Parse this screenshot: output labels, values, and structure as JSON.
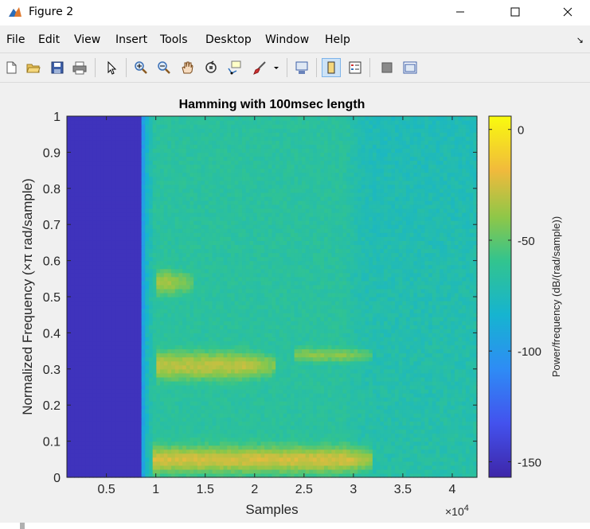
{
  "window": {
    "title": "Figure 2"
  },
  "menu": [
    "File",
    "Edit",
    "View",
    "Insert",
    "Tools",
    "Desktop",
    "Window",
    "Help"
  ],
  "toolbar": {
    "icons": [
      "new-figure-icon",
      "open-file-icon",
      "save-icon",
      "print-icon",
      "pointer-icon",
      "zoom-in-icon",
      "zoom-out-icon",
      "pan-icon",
      "rotate-3d-icon",
      "data-cursor-icon",
      "brush-icon",
      "link-plot-icon",
      "colorbar-icon",
      "legend-icon",
      "hide-plot-tools-icon",
      "show-plot-tools-icon"
    ]
  },
  "chart_data": {
    "type": "heatmap",
    "title": "Hamming with 100msec length",
    "xlabel": "Samples",
    "ylabel": "Normalized Frequency  (×π rad/sample)",
    "x_exponent_label": "×10",
    "x_exponent_power": "4",
    "xlim": [
      0.1,
      4.25
    ],
    "ylim": [
      0,
      1
    ],
    "xticks": [
      0.5,
      1,
      1.5,
      2,
      2.5,
      3,
      3.5,
      4
    ],
    "xtick_labels": [
      "0.5",
      "1",
      "1.5",
      "2",
      "2.5",
      "3",
      "3.5",
      "4"
    ],
    "yticks": [
      0,
      0.1,
      0.2,
      0.3,
      0.4,
      0.5,
      0.6,
      0.7,
      0.8,
      0.9,
      1
    ],
    "ytick_labels": [
      "0",
      "0.1",
      "0.2",
      "0.3",
      "0.4",
      "0.5",
      "0.6",
      "0.7",
      "0.8",
      "0.9",
      "1"
    ],
    "colormap": "parula",
    "colorbar": {
      "label": "Power/frequency (dB/(rad/sample))",
      "range": [
        -157,
        6
      ],
      "ticks": [
        0,
        -50,
        -100,
        -150
      ],
      "tick_labels": [
        "0",
        "-50",
        "-100",
        "-150"
      ]
    },
    "silent_region_x_end": 0.85,
    "background_level_db": -68,
    "bands": [
      {
        "x_start": 0.95,
        "x_end": 3.2,
        "y_center": 0.05,
        "y_width": 0.05,
        "level_db": -25
      },
      {
        "x_start": 1.0,
        "x_end": 2.2,
        "y_center": 0.31,
        "y_width": 0.06,
        "level_db": -30
      },
      {
        "x_start": 1.0,
        "x_end": 1.4,
        "y_center": 0.54,
        "y_width": 0.06,
        "level_db": -35
      },
      {
        "x_start": 2.4,
        "x_end": 3.2,
        "y_center": 0.34,
        "y_width": 0.04,
        "level_db": -42
      }
    ],
    "grid": false
  }
}
